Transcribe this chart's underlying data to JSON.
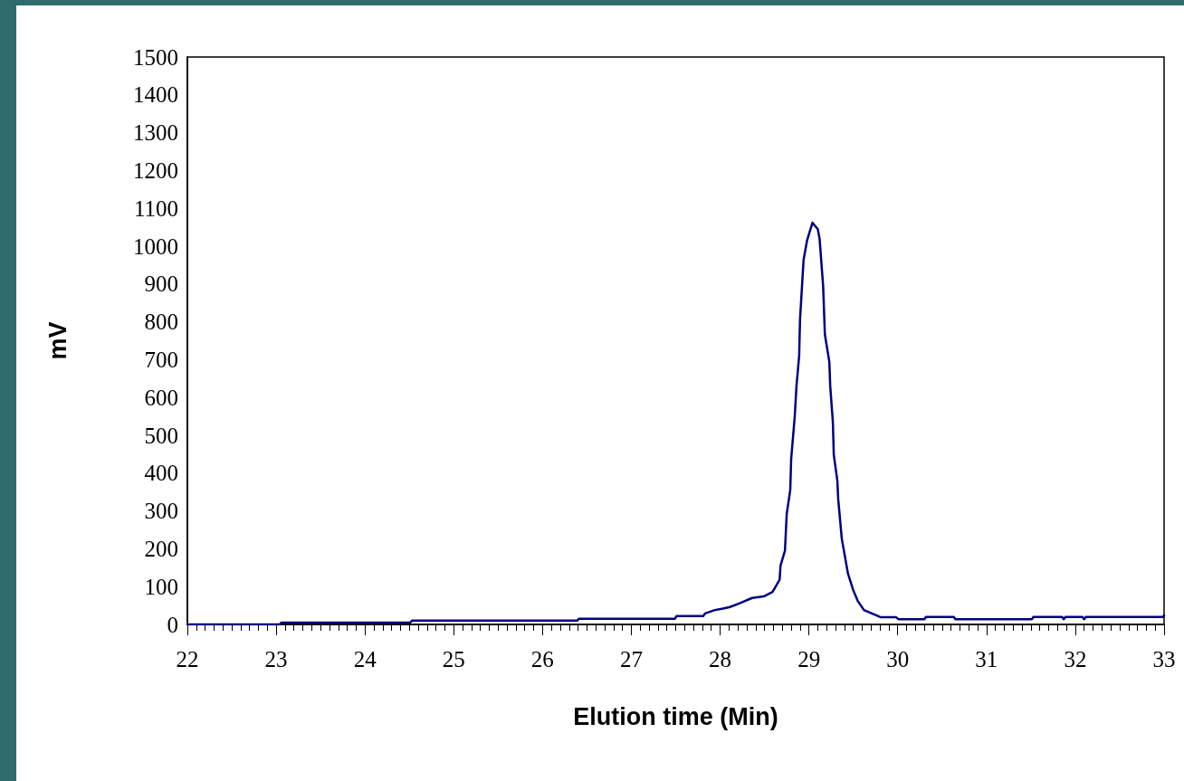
{
  "chart_data": {
    "type": "line",
    "xlabel": "Elution time (Min)",
    "ylabel": "mV",
    "x": [
      22,
      23.04,
      23.06,
      24.51,
      24.53,
      26.39,
      26.41,
      27.49,
      27.51,
      27.81,
      27.83,
      27.94,
      28.03,
      28.11,
      28.22,
      28.36,
      28.49,
      28.59,
      28.67,
      28.68,
      28.73,
      28.75,
      28.79,
      28.8,
      28.84,
      28.86,
      28.89,
      28.9,
      28.94,
      28.98,
      29.04,
      29.1,
      29.12,
      29.16,
      29.18,
      29.23,
      29.24,
      29.27,
      29.28,
      29.32,
      29.33,
      29.37,
      29.44,
      29.5,
      29.55,
      29.62,
      29.74,
      29.81,
      29.98,
      30.01,
      30.3,
      30.32,
      30.63,
      30.65,
      31.51,
      31.53,
      31.85,
      31.87,
      31.89,
      32.08,
      32.1,
      32.12,
      32.99,
      33
    ],
    "series": [
      {
        "color": "#000080",
        "values": [
          0,
          0,
          5,
          5,
          10,
          10,
          15,
          15,
          22,
          22,
          29,
          38,
          42,
          46,
          56,
          70,
          74,
          86,
          118,
          155,
          195,
          292,
          356,
          437,
          549,
          630,
          710,
          807,
          964,
          1016,
          1062,
          1045,
          1020,
          895,
          766,
          694,
          630,
          534,
          449,
          380,
          331,
          227,
          134,
          90,
          62,
          38,
          26,
          19,
          19,
          14,
          14,
          20,
          20,
          14,
          14,
          20,
          20,
          14,
          20,
          20,
          14,
          20,
          20,
          24
        ]
      }
    ],
    "xlim": [
      22,
      33
    ],
    "ylim": [
      0,
      1500
    ],
    "xticks": [
      22,
      {
        "value": 22.1,
        "label": null
      },
      {
        "value": 22.2,
        "label": null
      },
      {
        "value": 22.3,
        "label": null
      },
      {
        "value": 22.4,
        "label": null
      },
      {
        "value": 22.5,
        "label": null
      },
      {
        "value": 22.6,
        "label": null
      },
      {
        "value": 22.7,
        "label": null
      },
      {
        "value": 22.8,
        "label": null
      },
      {
        "value": 22.9,
        "label": null
      },
      23,
      {
        "value": 23.1,
        "label": null
      },
      {
        "value": 23.2,
        "label": null
      },
      {
        "value": 23.3,
        "label": null
      },
      {
        "value": 23.4,
        "label": null
      },
      {
        "value": 23.5,
        "label": null
      },
      {
        "value": 23.6,
        "label": null
      },
      {
        "value": 23.7,
        "label": null
      },
      {
        "value": 23.8,
        "label": null
      },
      {
        "value": 23.9,
        "label": null
      },
      24,
      {
        "value": 24.1,
        "label": null
      },
      {
        "value": 24.2,
        "label": null
      },
      {
        "value": 24.3,
        "label": null
      },
      {
        "value": 24.4,
        "label": null
      },
      {
        "value": 24.5,
        "label": null
      },
      {
        "value": 24.6,
        "label": null
      },
      {
        "value": 24.7,
        "label": null
      },
      {
        "value": 24.8,
        "label": null
      },
      {
        "value": 24.9,
        "label": null
      },
      25,
      {
        "value": 25.1,
        "label": null
      },
      {
        "value": 25.2,
        "label": null
      },
      {
        "value": 25.3,
        "label": null
      },
      {
        "value": 25.4,
        "label": null
      },
      {
        "value": 25.5,
        "label": null
      },
      {
        "value": 25.6,
        "label": null
      },
      {
        "value": 25.7,
        "label": null
      },
      {
        "value": 25.8,
        "label": null
      },
      {
        "value": 25.9,
        "label": null
      },
      26,
      {
        "value": 26.1,
        "label": null
      },
      {
        "value": 26.2,
        "label": null
      },
      {
        "value": 26.3,
        "label": null
      },
      {
        "value": 26.4,
        "label": null
      },
      {
        "value": 26.5,
        "label": null
      },
      {
        "value": 26.6,
        "label": null
      },
      {
        "value": 26.7,
        "label": null
      },
      {
        "value": 26.8,
        "label": null
      },
      {
        "value": 26.9,
        "label": null
      },
      27,
      {
        "value": 27.1,
        "label": null
      },
      {
        "value": 27.2,
        "label": null
      },
      {
        "value": 27.3,
        "label": null
      },
      {
        "value": 27.4,
        "label": null
      },
      {
        "value": 27.5,
        "label": null
      },
      {
        "value": 27.6,
        "label": null
      },
      {
        "value": 27.7,
        "label": null
      },
      {
        "value": 27.8,
        "label": null
      },
      {
        "value": 27.9,
        "label": null
      },
      28,
      {
        "value": 28.1,
        "label": null
      },
      {
        "value": 28.2,
        "label": null
      },
      {
        "value": 28.3,
        "label": null
      },
      {
        "value": 28.4,
        "label": null
      },
      {
        "value": 28.5,
        "label": null
      },
      {
        "value": 28.6,
        "label": null
      },
      {
        "value": 28.7,
        "label": null
      },
      {
        "value": 28.8,
        "label": null
      },
      {
        "value": 28.9,
        "label": null
      },
      29,
      {
        "value": 29.1,
        "label": null
      },
      {
        "value": 29.2,
        "label": null
      },
      {
        "value": 29.3,
        "label": null
      },
      {
        "value": 29.4,
        "label": null
      },
      {
        "value": 29.5,
        "label": null
      },
      {
        "value": 29.6,
        "label": null
      },
      {
        "value": 29.7,
        "label": null
      },
      {
        "value": 29.8,
        "label": null
      },
      {
        "value": 29.9,
        "label": null
      },
      30,
      {
        "value": 30.1,
        "label": null
      },
      {
        "value": 30.2,
        "label": null
      },
      {
        "value": 30.3,
        "label": null
      },
      {
        "value": 30.4,
        "label": null
      },
      {
        "value": 30.5,
        "label": null
      },
      {
        "value": 30.6,
        "label": null
      },
      {
        "value": 30.7,
        "label": null
      },
      {
        "value": 30.8,
        "label": null
      },
      {
        "value": 30.9,
        "label": null
      },
      31,
      {
        "value": 31.1,
        "label": null
      },
      {
        "value": 31.2,
        "label": null
      },
      {
        "value": 31.3,
        "label": null
      },
      {
        "value": 31.4,
        "label": null
      },
      {
        "value": 31.5,
        "label": null
      },
      {
        "value": 31.6,
        "label": null
      },
      {
        "value": 31.7,
        "label": null
      },
      {
        "value": 31.8,
        "label": null
      },
      {
        "value": 31.9,
        "label": null
      },
      32,
      {
        "value": 32.1,
        "label": null
      },
      {
        "value": 32.2,
        "label": null
      },
      {
        "value": 32.3,
        "label": null
      },
      {
        "value": 32.4,
        "label": null
      },
      {
        "value": 32.5,
        "label": null
      },
      {
        "value": 32.6,
        "label": null
      },
      {
        "value": 32.7,
        "label": null
      },
      {
        "value": 32.8,
        "label": null
      },
      {
        "value": 32.9,
        "label": null
      },
      33
    ],
    "yticks": [
      0,
      100,
      200,
      300,
      400,
      500,
      600,
      700,
      800,
      900,
      1000,
      1100,
      1200,
      1300,
      1400,
      1500
    ],
    "grid": false,
    "marker": "none",
    "line_style": "solid"
  }
}
